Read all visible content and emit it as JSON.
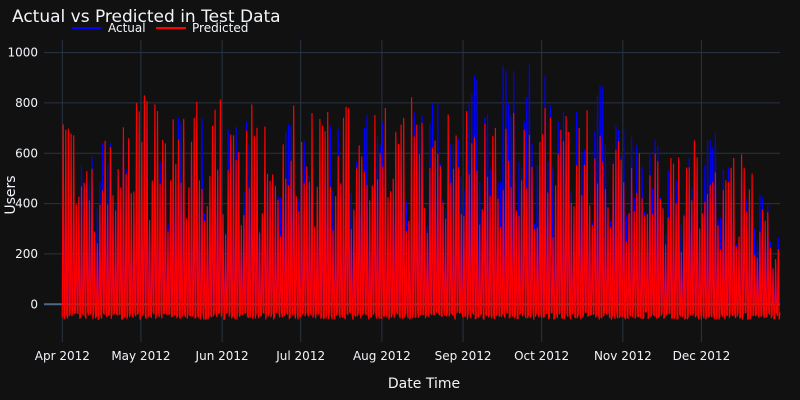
{
  "chart_data": {
    "type": "line",
    "title": "Actual vs Predicted in Test Data",
    "xlabel": "Date Time",
    "ylabel": "Users",
    "x_range": [
      "2012-03-25",
      "2012-12-31"
    ],
    "ylim": [
      -150,
      1050
    ],
    "yticks": [
      0,
      200,
      400,
      600,
      800,
      1000
    ],
    "xticks": [
      {
        "date": "2012-04-01",
        "label": "Apr 2012"
      },
      {
        "date": "2012-05-01",
        "label": "May 2012"
      },
      {
        "date": "2012-06-01",
        "label": "Jun 2012"
      },
      {
        "date": "2012-07-01",
        "label": "Jul 2012"
      },
      {
        "date": "2012-08-01",
        "label": "Aug 2012"
      },
      {
        "date": "2012-09-01",
        "label": "Sep 2012"
      },
      {
        "date": "2012-10-01",
        "label": "Oct 2012"
      },
      {
        "date": "2012-11-01",
        "label": "Nov 2012"
      },
      {
        "date": "2012-12-01",
        "label": "Dec 2012"
      }
    ],
    "grid": true,
    "legend_position": "top-left",
    "series": [
      {
        "name": "Actual",
        "color": "#0000ff",
        "points": [
          [
            "2012-03-25",
            0
          ],
          [
            "2012-04-01",
            590
          ],
          [
            "2012-04-15",
            650
          ],
          [
            "2012-05-01",
            750
          ],
          [
            "2012-05-15",
            780
          ],
          [
            "2012-06-01",
            720
          ],
          [
            "2012-06-15",
            800
          ],
          [
            "2012-07-01",
            790
          ],
          [
            "2012-07-15",
            770
          ],
          [
            "2012-08-01",
            780
          ],
          [
            "2012-08-15",
            800
          ],
          [
            "2012-09-01",
            850
          ],
          [
            "2012-09-08",
            960
          ],
          [
            "2012-09-15",
            950
          ],
          [
            "2012-09-22",
            970
          ],
          [
            "2012-10-01",
            950
          ],
          [
            "2012-10-08",
            930
          ],
          [
            "2012-10-15",
            860
          ],
          [
            "2012-10-22",
            930
          ],
          [
            "2012-11-01",
            700
          ],
          [
            "2012-11-08",
            650
          ],
          [
            "2012-11-15",
            680
          ],
          [
            "2012-11-22",
            600
          ],
          [
            "2012-12-01",
            720
          ],
          [
            "2012-12-08",
            730
          ],
          [
            "2012-12-15",
            640
          ],
          [
            "2012-12-22",
            560
          ],
          [
            "2012-12-31",
            300
          ]
        ]
      },
      {
        "name": "Predicted",
        "color": "#ff0000",
        "points": [
          [
            "2012-03-25",
            -50
          ],
          [
            "2012-04-01",
            800
          ],
          [
            "2012-04-15",
            660
          ],
          [
            "2012-05-01",
            840
          ],
          [
            "2012-05-15",
            820
          ],
          [
            "2012-06-01",
            820
          ],
          [
            "2012-06-15",
            810
          ],
          [
            "2012-07-01",
            800
          ],
          [
            "2012-07-15",
            780
          ],
          [
            "2012-08-01",
            820
          ],
          [
            "2012-08-15",
            830
          ],
          [
            "2012-09-01",
            850
          ],
          [
            "2012-09-08",
            720
          ],
          [
            "2012-09-15",
            780
          ],
          [
            "2012-09-22",
            800
          ],
          [
            "2012-10-01",
            780
          ],
          [
            "2012-10-08",
            800
          ],
          [
            "2012-10-15",
            780
          ],
          [
            "2012-10-22",
            790
          ],
          [
            "2012-11-01",
            620
          ],
          [
            "2012-11-08",
            640
          ],
          [
            "2012-11-15",
            640
          ],
          [
            "2012-11-22",
            600
          ],
          [
            "2012-12-01",
            690
          ],
          [
            "2012-12-08",
            650
          ],
          [
            "2012-12-15",
            670
          ],
          [
            "2012-12-22",
            480
          ],
          [
            "2012-12-31",
            300
          ]
        ]
      }
    ]
  }
}
